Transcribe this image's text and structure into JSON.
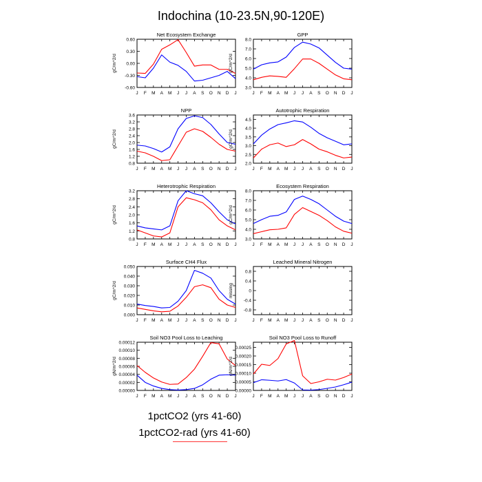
{
  "figure": {
    "title": "Indochina (10-23.5N,90-120E)",
    "legend": [
      {
        "label": "1pctCO2 (yrs 41-60)",
        "color": "#0000ff"
      },
      {
        "label": "1pctCO2-rad (yrs 41-60)",
        "color": "#ff0000"
      }
    ]
  },
  "months": [
    "J",
    "F",
    "M",
    "A",
    "M",
    "J",
    "J",
    "A",
    "S",
    "O",
    "N",
    "D",
    "J"
  ],
  "chart_data": [
    {
      "type": "line",
      "title": "Net Ecosystem Exchange",
      "ylabel": "gC/m^2/d",
      "ylim": [
        -0.6,
        0.6
      ],
      "yticks": [
        "0.60",
        "0.30",
        "0.00",
        "-0.30",
        "-0.60"
      ],
      "ytick_values": [
        0.6,
        0.3,
        0.0,
        -0.3,
        -0.6
      ],
      "series": [
        {
          "color": "#0000ff",
          "values": [
            -0.33,
            -0.36,
            -0.12,
            0.21,
            0.03,
            -0.05,
            -0.2,
            -0.44,
            -0.42,
            -0.36,
            -0.3,
            -0.2,
            -0.38
          ]
        },
        {
          "color": "#ff0000",
          "values": [
            -0.24,
            -0.25,
            -0.02,
            0.35,
            0.46,
            0.59,
            0.27,
            -0.07,
            -0.04,
            -0.04,
            -0.15,
            -0.15,
            -0.25
          ]
        }
      ]
    },
    {
      "type": "line",
      "title": "GPP",
      "ylabel": "gC/m^2/d",
      "ylim": [
        3.0,
        8.0
      ],
      "yticks": [
        "8.0",
        "7.0",
        "6.0",
        "5.0",
        "4.0",
        "3.0"
      ],
      "ytick_values": [
        8,
        7,
        6,
        5,
        4,
        3
      ],
      "series": [
        {
          "color": "#0000ff",
          "values": [
            4.9,
            5.35,
            5.55,
            5.65,
            6.15,
            7.15,
            7.7,
            7.5,
            7.1,
            6.35,
            5.6,
            5.0,
            4.9
          ]
        },
        {
          "color": "#ff0000",
          "values": [
            3.8,
            4.05,
            4.2,
            4.15,
            4.05,
            4.95,
            5.95,
            5.95,
            5.5,
            4.9,
            4.3,
            3.9,
            3.8
          ]
        }
      ]
    },
    {
      "type": "line",
      "title": "NPP",
      "ylabel": "gC/m^2/d",
      "ylim": [
        0.8,
        3.6
      ],
      "yticks": [
        "3.6",
        "3.2",
        "2.8",
        "2.4",
        "2.0",
        "1.6",
        "1.2",
        "0.8"
      ],
      "ytick_values": [
        3.6,
        3.2,
        2.8,
        2.4,
        2.0,
        1.6,
        1.2,
        0.8
      ],
      "series": [
        {
          "color": "#0000ff",
          "values": [
            1.85,
            1.8,
            1.65,
            1.45,
            1.75,
            2.8,
            3.4,
            3.55,
            3.45,
            3.05,
            2.5,
            2.0,
            1.9
          ]
        },
        {
          "color": "#ff0000",
          "values": [
            1.5,
            1.4,
            1.2,
            0.95,
            1.0,
            1.8,
            2.6,
            2.8,
            2.65,
            2.3,
            1.9,
            1.6,
            1.5
          ]
        }
      ]
    },
    {
      "type": "line",
      "title": "Autotrophic Respiration",
      "ylabel": "gC/m^2/d",
      "ylim": [
        2.0,
        4.75
      ],
      "yticks": [
        "4.5",
        "4.0",
        "3.5",
        "3.0",
        "2.5",
        "2.0"
      ],
      "ytick_values": [
        4.5,
        4.0,
        3.5,
        3.0,
        2.5,
        2.0
      ],
      "series": [
        {
          "color": "#0000ff",
          "values": [
            3.1,
            3.6,
            3.95,
            4.2,
            4.3,
            4.42,
            4.35,
            4.05,
            3.7,
            3.45,
            3.25,
            3.05,
            3.1
          ]
        },
        {
          "color": "#ff0000",
          "values": [
            2.3,
            2.8,
            3.05,
            3.15,
            2.95,
            3.05,
            3.35,
            3.1,
            2.8,
            2.65,
            2.45,
            2.3,
            2.35
          ]
        }
      ]
    },
    {
      "type": "line",
      "title": "Heterotrophic Respiration",
      "ylabel": "gC/m^2/d",
      "ylim": [
        0.8,
        3.2
      ],
      "yticks": [
        "3.2",
        "2.8",
        "2.4",
        "2.0",
        "1.6",
        "1.2",
        "0.8"
      ],
      "ytick_values": [
        3.2,
        2.8,
        2.4,
        2.0,
        1.6,
        1.2,
        0.8
      ],
      "series": [
        {
          "color": "#0000ff",
          "values": [
            1.45,
            1.35,
            1.3,
            1.25,
            1.45,
            2.7,
            3.2,
            3.05,
            2.95,
            2.6,
            2.15,
            1.75,
            1.55
          ]
        },
        {
          "color": "#ff0000",
          "values": [
            1.25,
            1.1,
            0.95,
            0.9,
            1.1,
            2.4,
            2.85,
            2.75,
            2.6,
            2.25,
            1.75,
            1.45,
            1.25
          ]
        }
      ]
    },
    {
      "type": "line",
      "title": "Ecosystem Respiration",
      "ylabel": "gC/m^2/d",
      "ylim": [
        3.0,
        8.0
      ],
      "yticks": [
        "8.0",
        "7.0",
        "6.0",
        "5.0",
        "4.0",
        "3.0"
      ],
      "ytick_values": [
        8,
        7,
        6,
        5,
        4,
        3
      ],
      "series": [
        {
          "color": "#0000ff",
          "values": [
            4.6,
            5.0,
            5.35,
            5.45,
            5.8,
            7.1,
            7.45,
            7.1,
            6.65,
            6.0,
            5.35,
            4.85,
            4.6
          ]
        },
        {
          "color": "#ff0000",
          "values": [
            3.55,
            3.75,
            3.95,
            4.0,
            4.15,
            5.55,
            6.25,
            5.85,
            5.45,
            4.9,
            4.25,
            3.8,
            3.6
          ]
        }
      ]
    },
    {
      "type": "line",
      "title": "Surface CH4 Flux",
      "ylabel": "gC/m^2/d",
      "ylim": [
        0.0,
        0.05
      ],
      "yticks": [
        "0.050",
        "0.040",
        "0.030",
        "0.020",
        "0.010",
        "0.000"
      ],
      "ytick_values": [
        0.05,
        0.04,
        0.03,
        0.02,
        0.01,
        0.0
      ],
      "series": [
        {
          "color": "#0000ff",
          "values": [
            0.011,
            0.0095,
            0.0085,
            0.007,
            0.0075,
            0.014,
            0.025,
            0.046,
            0.043,
            0.038,
            0.025,
            0.016,
            0.011
          ]
        },
        {
          "color": "#ff0000",
          "values": [
            0.007,
            0.0055,
            0.004,
            0.003,
            0.0035,
            0.009,
            0.018,
            0.029,
            0.031,
            0.028,
            0.016,
            0.01,
            0.0075
          ]
        }
      ]
    },
    {
      "type": "line",
      "title": "Leached Mineral Nitrogen",
      "ylabel": "missing",
      "ylim": [
        -1.0,
        1.0
      ],
      "yticks": [
        "0.8",
        "0.4",
        "0",
        "-0.4",
        "-0.8"
      ],
      "ytick_values": [
        0.8,
        0.4,
        0,
        -0.4,
        -0.8
      ],
      "series": []
    },
    {
      "type": "line",
      "title": "Soil NO3 Pool Loss to Leaching",
      "ylabel": "gN/m^2/d",
      "ylim": [
        0.0,
        0.00012
      ],
      "yticks": [
        "0.00012",
        "0.00010",
        "0.00008",
        "0.00006",
        "0.00004",
        "0.00002",
        "0.00000"
      ],
      "ytick_values": [
        0.00012,
        0.0001,
        8e-05,
        6e-05,
        4e-05,
        2e-05,
        0.0
      ],
      "series": [
        {
          "color": "#0000ff",
          "values": [
            3.8e-05,
            2e-05,
            1.1e-05,
            5e-06,
            2e-06,
            1e-06,
            2e-06,
            5e-06,
            1.4e-05,
            2.8e-05,
            3.8e-05,
            3.9e-05,
            3.8e-05
          ]
        },
        {
          "color": "#ff0000",
          "values": [
            6.2e-05,
            4.5e-05,
            3.1e-05,
            2.1e-05,
            1.5e-05,
            1.6e-05,
            3.2e-05,
            5.3e-05,
            8.5e-05,
            0.000119,
            0.000116,
            7.8e-05,
            6.2e-05
          ]
        }
      ]
    },
    {
      "type": "line",
      "title": "Soil NO3 Pool Loss to Runoff",
      "ylabel": "gN/m^2/d",
      "ylim": [
        0.0,
        0.00028
      ],
      "yticks": [
        "0.00025",
        "0.00020",
        "0.00015",
        "0.00010",
        "0.00005",
        "0.00000"
      ],
      "ytick_values": [
        0.00025,
        0.0002,
        0.00015,
        0.0001,
        5e-05,
        0.0
      ],
      "series": [
        {
          "color": "#0000ff",
          "values": [
            4.5e-05,
            6.2e-05,
            5.9e-05,
            5.5e-05,
            6.3e-05,
            4.3e-05,
            3e-06,
            2e-06,
            5e-06,
            1.2e-05,
            2e-05,
            3.3e-05,
            4.8e-05
          ]
        },
        {
          "color": "#ff0000",
          "values": [
            9.5e-05,
            0.000152,
            0.000145,
            0.000185,
            0.00027,
            0.00029,
            8.5e-05,
            4e-05,
            5e-05,
            6.5e-05,
            6e-05,
            7.5e-05,
            9.5e-05
          ]
        }
      ]
    }
  ]
}
